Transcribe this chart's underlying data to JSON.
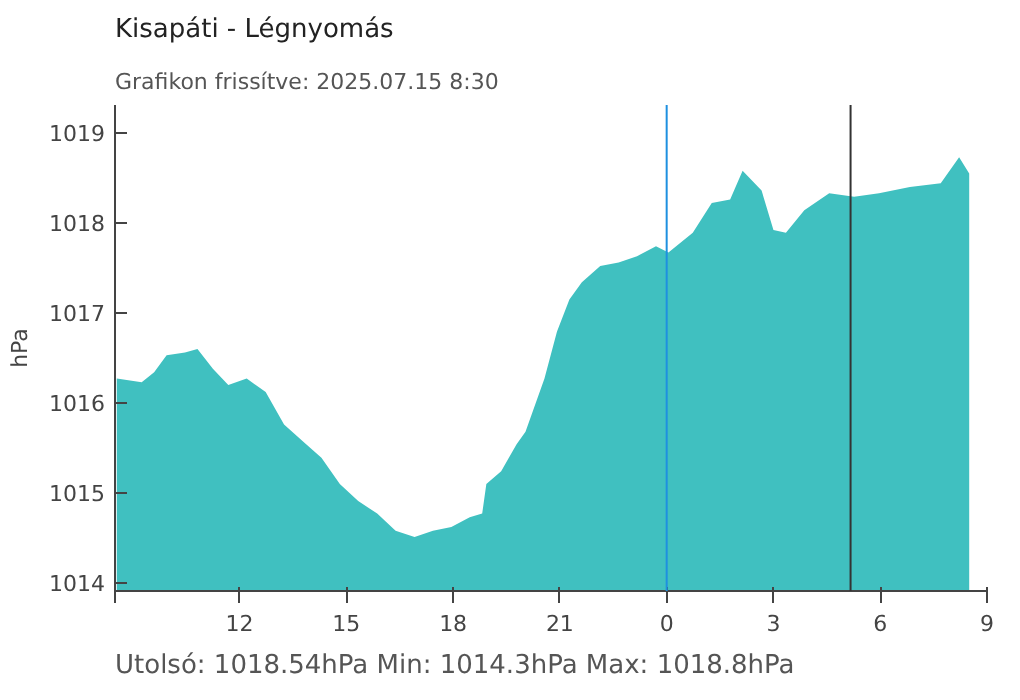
{
  "chart_data": {
    "type": "area",
    "title": "Kisapáti - Légnyomás",
    "subtitle": "Grafikon frissítve: 2025.07.15 8:30",
    "ylabel": "hPa",
    "annotations": [
      "Utolsó: 1018.54hPa  Min: 1014.3hPa  Max: 1018.8hPa"
    ],
    "x": [
      "2025-07-14T08:33",
      "2025-07-14T09:15",
      "2025-07-14T09:36",
      "2025-07-14T09:57",
      "2025-07-14T10:28",
      "2025-07-14T10:49",
      "2025-07-14T11:15",
      "2025-07-14T11:41",
      "2025-07-14T12:12",
      "2025-07-14T12:44",
      "2025-07-14T13:15",
      "2025-07-14T13:47",
      "2025-07-14T14:18",
      "2025-07-14T14:49",
      "2025-07-14T15:20",
      "2025-07-14T15:52",
      "2025-07-14T16:23",
      "2025-07-14T16:55",
      "2025-07-14T17:26",
      "2025-07-14T17:57",
      "2025-07-14T18:28",
      "2025-07-14T18:49",
      "2025-07-14T18:56",
      "2025-07-14T19:21",
      "2025-07-14T19:47",
      "2025-07-14T20:02",
      "2025-07-14T20:34",
      "2025-07-14T20:55",
      "2025-07-14T21:16",
      "2025-07-14T21:37",
      "2025-07-14T22:08",
      "2025-07-14T22:39",
      "2025-07-14T23:10",
      "2025-07-14T23:42",
      "2025-07-15T00:03",
      "2025-07-15T00:44",
      "2025-07-15T01:16",
      "2025-07-15T01:47",
      "2025-07-15T02:08",
      "2025-07-15T02:40",
      "2025-07-15T03:00",
      "2025-07-15T03:21",
      "2025-07-15T03:52",
      "2025-07-15T04:34",
      "2025-07-15T05:16",
      "2025-07-15T05:58",
      "2025-07-15T06:50",
      "2025-07-15T07:42",
      "2025-07-15T08:13",
      "2025-07-15T08:30"
    ],
    "series": [
      {
        "color": "#40c0c0",
        "values": [
          1016.26,
          1016.22,
          1016.33,
          1016.52,
          1016.55,
          1016.59,
          1016.37,
          1016.19,
          1016.26,
          1016.11,
          1015.75,
          1015.56,
          1015.38,
          1015.09,
          1014.9,
          1014.76,
          1014.57,
          1014.5,
          1014.57,
          1014.61,
          1014.72,
          1014.76,
          1015.09,
          1015.23,
          1015.53,
          1015.67,
          1016.26,
          1016.78,
          1017.14,
          1017.33,
          1017.51,
          1017.55,
          1017.62,
          1017.73,
          1017.66,
          1017.88,
          1018.21,
          1018.25,
          1018.57,
          1018.35,
          1017.91,
          1017.88,
          1018.13,
          1018.32,
          1018.28,
          1018.32,
          1018.39,
          1018.43,
          1018.72,
          1018.54
        ]
      }
    ],
    "xlim": [
      "2025-07-14T08:30",
      "2025-07-15T09:00"
    ],
    "xticks": [
      {
        "value": "2025-07-14T08:30",
        "label": null
      },
      {
        "value": "2025-07-14T12:00",
        "label": "12"
      },
      {
        "value": "2025-07-14T15:00",
        "label": "15"
      },
      {
        "value": "2025-07-14T18:00",
        "label": "18"
      },
      {
        "value": "2025-07-14T21:00",
        "label": "21"
      },
      {
        "value": "2025-07-15T00:00",
        "label": "0"
      },
      {
        "value": "2025-07-15T03:00",
        "label": "3"
      },
      {
        "value": "2025-07-15T06:00",
        "label": "6"
      },
      {
        "value": "2025-07-15T09:00",
        "label": "9"
      }
    ],
    "ylim": [
      1013.9,
      1019.3
    ],
    "yticks": [
      1014,
      1015,
      1016,
      1017,
      1018,
      1019
    ],
    "ref_lines": [
      {
        "axis": "x",
        "value": "2025-07-15T00:00",
        "label": null,
        "color": "#1e90e0"
      },
      {
        "axis": "x",
        "value": "2025-07-15T05:10",
        "label": null,
        "color": "#333333"
      }
    ]
  }
}
